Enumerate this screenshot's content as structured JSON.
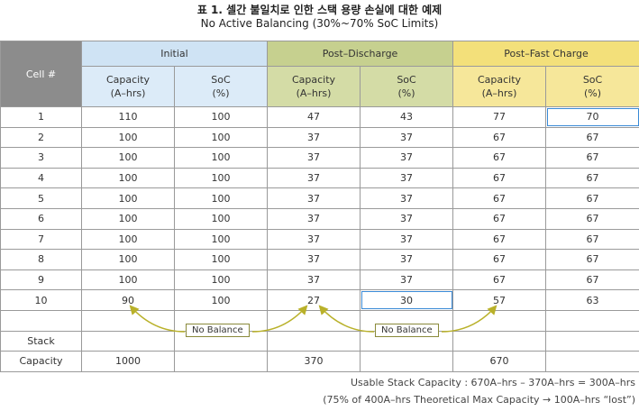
{
  "title": "표 1. 셀간 불일치로 인한 스택 용량 손실에 대한 예제",
  "subtitle": "No Active Balancing (30%~70% SoC Limits)",
  "table": {
    "cell_header": "Cell #",
    "groups": [
      "Initial",
      "Post–Discharge",
      "Post–Fast Charge"
    ],
    "sub_headers": [
      {
        "line1": "Capacity",
        "line2": "(A–hrs)"
      },
      {
        "line1": "SoC",
        "line2": "(%)"
      },
      {
        "line1": "Capacity",
        "line2": "(A–hrs)"
      },
      {
        "line1": "SoC",
        "line2": "(%)"
      },
      {
        "line1": "Capacity",
        "line2": "(A–hrs)"
      },
      {
        "line1": "SoC",
        "line2": "(%)"
      }
    ],
    "rows": [
      [
        "1",
        "110",
        "100",
        "47",
        "43",
        "77",
        "70"
      ],
      [
        "2",
        "100",
        "100",
        "37",
        "37",
        "67",
        "67"
      ],
      [
        "3",
        "100",
        "100",
        "37",
        "37",
        "67",
        "67"
      ],
      [
        "4",
        "100",
        "100",
        "37",
        "37",
        "67",
        "67"
      ],
      [
        "5",
        "100",
        "100",
        "37",
        "37",
        "67",
        "67"
      ],
      [
        "6",
        "100",
        "100",
        "37",
        "37",
        "67",
        "67"
      ],
      [
        "7",
        "100",
        "100",
        "37",
        "37",
        "67",
        "67"
      ],
      [
        "8",
        "100",
        "100",
        "37",
        "37",
        "67",
        "67"
      ],
      [
        "9",
        "100",
        "100",
        "37",
        "37",
        "67",
        "67"
      ],
      [
        "10",
        "90",
        "100",
        "27",
        "30",
        "57",
        "63"
      ]
    ],
    "stack_label": "Stack",
    "capacity_label": "Capacity",
    "stack_capacity": [
      "1000",
      "370",
      "670"
    ],
    "no_balance_labels": [
      "No Balance",
      "No Balance"
    ]
  },
  "footnotes": [
    "Usable Stack Capacity : 670A–hrs – 370A–hrs = 300A–hrs",
    "(75% of 400A–hrs Theoretical Max Capacity → 100A–hrs “lost”)"
  ],
  "colors": {
    "cell_header_bg": "#8c8c8c",
    "initial_bg": "#cfe3f4",
    "post_discharge_bg": "#c6d08f",
    "post_fast_charge_bg": "#f3e07a",
    "highlight_border": "#3a8ad6",
    "arrow": "#b9b12a"
  }
}
